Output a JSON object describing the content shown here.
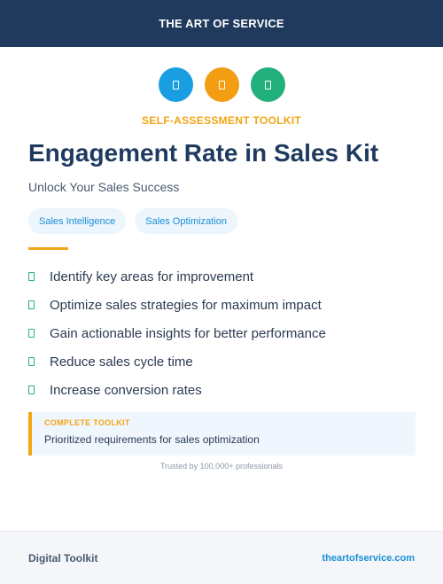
{
  "header": {
    "brand": "THE ART OF SERVICE"
  },
  "icons": [
    {
      "name": "document-icon",
      "color": "#1a9ee2"
    },
    {
      "name": "document-icon",
      "color": "#f29d12"
    },
    {
      "name": "document-icon",
      "color": "#22b07d"
    }
  ],
  "kicker": "SELF-ASSESSMENT TOOLKIT",
  "title": "Engagement Rate in Sales Kit",
  "subtitle": "Unlock Your Sales Success",
  "tags": [
    "Sales Intelligence",
    "Sales Optimization"
  ],
  "benefits": [
    "Identify key areas for improvement",
    "Optimize sales strategies for maximum impact",
    "Gain actionable insights for better performance",
    "Reduce sales cycle time",
    "Increase conversion rates"
  ],
  "callout": {
    "label": "COMPLETE TOOLKIT",
    "text": "Prioritized requirements for sales optimization"
  },
  "trusted": "Trusted by 100,000+ professionals",
  "footer": {
    "left": "Digital Toolkit",
    "right": "theartofservice.com"
  },
  "colors": {
    "navy": "#1f3a5c",
    "accent_orange": "#f2a516",
    "accent_blue": "#1a8fd6",
    "accent_green": "#22b07d"
  }
}
